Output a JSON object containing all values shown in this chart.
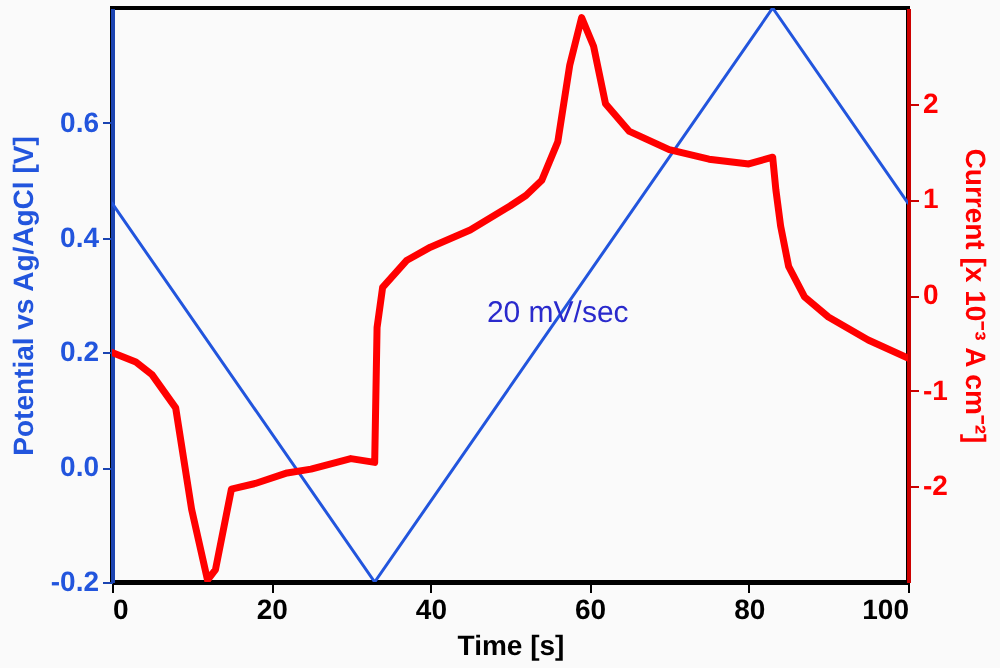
{
  "chart_data": {
    "type": "line",
    "xlabel": "Time [s]",
    "ylabel": "Potential vs Ag/AgCl  [V]",
    "y2label": "Current [x 10⁻³ A cm⁻²]",
    "xlim": [
      0,
      100
    ],
    "xticks": [
      0,
      20,
      40,
      60,
      80,
      100
    ],
    "ylim": [
      -0.2,
      0.8
    ],
    "yticks": [
      -0.2,
      {
        "value": 0,
        "label": "0.0"
      },
      0.2,
      0.4,
      0.6
    ],
    "y2lim": [
      -3,
      3
    ],
    "y2ticks": [
      -2,
      -1,
      0,
      1,
      2
    ],
    "grid": false,
    "legend": false,
    "series": [
      {
        "color": "#2255dd",
        "x": [
          0,
          33,
          83,
          100
        ],
        "values": [
          0.46,
          -0.2,
          0.8,
          0.46
        ]
      },
      {
        "color": "#ff0000",
        "axis": "y2",
        "x": [
          0,
          3,
          5,
          8,
          10,
          12,
          13,
          15,
          18,
          22,
          25,
          30,
          33,
          33.3,
          34,
          37,
          40,
          45,
          50,
          52,
          54,
          56,
          57.5,
          59,
          60.5,
          62,
          65,
          70,
          75,
          80,
          83,
          83.4,
          84,
          85,
          87,
          90,
          95,
          100
        ],
        "values": [
          -0.6,
          -0.7,
          -0.83,
          -1.18,
          -2.24,
          -2.98,
          -2.87,
          -2.03,
          -1.97,
          -1.86,
          -1.82,
          -1.71,
          -1.75,
          -0.34,
          0.08,
          0.36,
          0.5,
          0.68,
          0.93,
          1.04,
          1.2,
          1.6,
          2.4,
          2.9,
          2.6,
          2.0,
          1.71,
          1.52,
          1.42,
          1.37,
          1.44,
          1.1,
          0.72,
          0.3,
          -0.02,
          -0.23,
          -0.47,
          -0.66
        ]
      }
    ],
    "annotations": [
      "20 mV/sec"
    ]
  }
}
